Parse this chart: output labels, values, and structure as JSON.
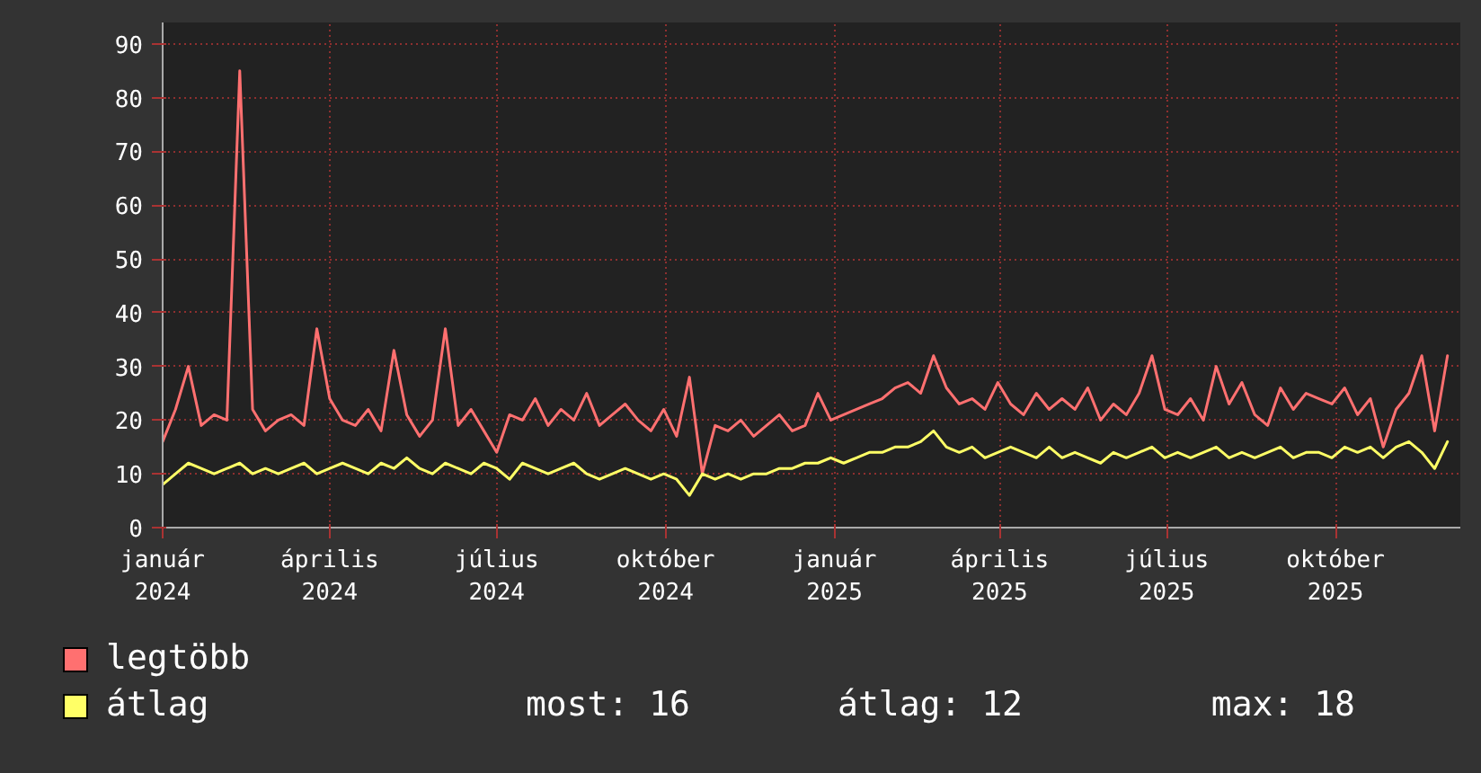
{
  "chart_data": {
    "type": "line",
    "xlim": [
      "2024-01-01",
      "2025-12-08"
    ],
    "ylim": [
      0,
      94
    ],
    "yticks": [
      0,
      10,
      20,
      30,
      40,
      50,
      60,
      70,
      80,
      90
    ],
    "xticks": [
      {
        "value": "2024-01-01",
        "label": "január 2024"
      },
      {
        "value": "2024-04-01",
        "label": "április 2024"
      },
      {
        "value": "2024-07-01",
        "label": "július 2024"
      },
      {
        "value": "2024-10-01",
        "label": "október 2024"
      },
      {
        "value": "2025-01-01",
        "label": "január 2025"
      },
      {
        "value": "2025-04-01",
        "label": "április 2025"
      },
      {
        "value": "2025-07-01",
        "label": "július 2025"
      },
      {
        "value": "2025-10-01",
        "label": "október 2025"
      }
    ],
    "grid": true,
    "legend": "bottom",
    "marker": "none",
    "line_style": "solid",
    "x": [
      "2024-01-01",
      "2024-01-08",
      "2024-01-15",
      "2024-01-22",
      "2024-01-29",
      "2024-02-05",
      "2024-02-12",
      "2024-02-19",
      "2024-02-26",
      "2024-03-04",
      "2024-03-11",
      "2024-03-18",
      "2024-03-25",
      "2024-04-01",
      "2024-04-08",
      "2024-04-15",
      "2024-04-22",
      "2024-04-29",
      "2024-05-06",
      "2024-05-13",
      "2024-05-20",
      "2024-05-27",
      "2024-06-03",
      "2024-06-10",
      "2024-06-17",
      "2024-06-24",
      "2024-07-01",
      "2024-07-08",
      "2024-07-15",
      "2024-07-22",
      "2024-07-29",
      "2024-08-05",
      "2024-08-12",
      "2024-08-19",
      "2024-08-26",
      "2024-09-02",
      "2024-09-09",
      "2024-09-16",
      "2024-09-23",
      "2024-09-30",
      "2024-10-07",
      "2024-10-14",
      "2024-10-21",
      "2024-10-28",
      "2024-11-04",
      "2024-11-11",
      "2024-11-18",
      "2024-11-25",
      "2024-12-02",
      "2024-12-09",
      "2024-12-16",
      "2024-12-23",
      "2024-12-30",
      "2025-01-06",
      "2025-01-13",
      "2025-01-20",
      "2025-01-27",
      "2025-02-03",
      "2025-02-10",
      "2025-02-17",
      "2025-02-24",
      "2025-03-03",
      "2025-03-10",
      "2025-03-17",
      "2025-03-24",
      "2025-03-31",
      "2025-04-07",
      "2025-04-14",
      "2025-04-21",
      "2025-04-28",
      "2025-05-05",
      "2025-05-12",
      "2025-05-19",
      "2025-05-26",
      "2025-06-02",
      "2025-06-09",
      "2025-06-16",
      "2025-06-23",
      "2025-06-30",
      "2025-07-07",
      "2025-07-14",
      "2025-07-21",
      "2025-07-28",
      "2025-08-04",
      "2025-08-11",
      "2025-08-18",
      "2025-08-25",
      "2025-09-01",
      "2025-09-08",
      "2025-09-15",
      "2025-09-22",
      "2025-09-29",
      "2025-10-06",
      "2025-10-13",
      "2025-10-20",
      "2025-10-27",
      "2025-11-03",
      "2025-11-10",
      "2025-11-17",
      "2025-11-24",
      "2025-12-01"
    ],
    "series": [
      {
        "name": "legtöbb",
        "color": "#ff7070",
        "values": [
          16,
          22,
          30,
          19,
          21,
          20,
          85,
          22,
          18,
          20,
          21,
          19,
          37,
          24,
          20,
          19,
          22,
          18,
          33,
          21,
          17,
          20,
          37,
          19,
          22,
          18,
          14,
          21,
          20,
          24,
          19,
          22,
          20,
          25,
          19,
          21,
          23,
          20,
          18,
          22,
          17,
          28,
          10,
          19,
          18,
          20,
          17,
          19,
          21,
          18,
          19,
          25,
          20,
          21,
          22,
          23,
          24,
          26,
          27,
          25,
          32,
          26,
          23,
          24,
          22,
          27,
          23,
          21,
          25,
          22,
          24,
          22,
          26,
          20,
          23,
          21,
          25,
          32,
          22,
          21,
          24,
          20,
          30,
          23,
          27,
          21,
          19,
          26,
          22,
          25,
          24,
          23,
          26,
          21,
          24,
          15,
          22,
          25,
          32,
          18,
          32
        ]
      },
      {
        "name": "átlag",
        "color": "#ffff66",
        "values": [
          8,
          10,
          12,
          11,
          10,
          11,
          12,
          10,
          11,
          10,
          11,
          12,
          10,
          11,
          12,
          11,
          10,
          12,
          11,
          13,
          11,
          10,
          12,
          11,
          10,
          12,
          11,
          9,
          12,
          11,
          10,
          11,
          12,
          10,
          9,
          10,
          11,
          10,
          9,
          10,
          9,
          6,
          10,
          9,
          10,
          9,
          10,
          10,
          11,
          11,
          12,
          12,
          13,
          12,
          13,
          14,
          14,
          15,
          15,
          16,
          18,
          15,
          14,
          15,
          13,
          14,
          15,
          14,
          13,
          15,
          13,
          14,
          13,
          12,
          14,
          13,
          14,
          15,
          13,
          14,
          13,
          14,
          15,
          13,
          14,
          13,
          14,
          15,
          13,
          14,
          14,
          13,
          15,
          14,
          15,
          13,
          15,
          16,
          14,
          11,
          16
        ]
      }
    ],
    "annotations": [
      "most: 16",
      "átlag: 12",
      "max: 18"
    ]
  }
}
